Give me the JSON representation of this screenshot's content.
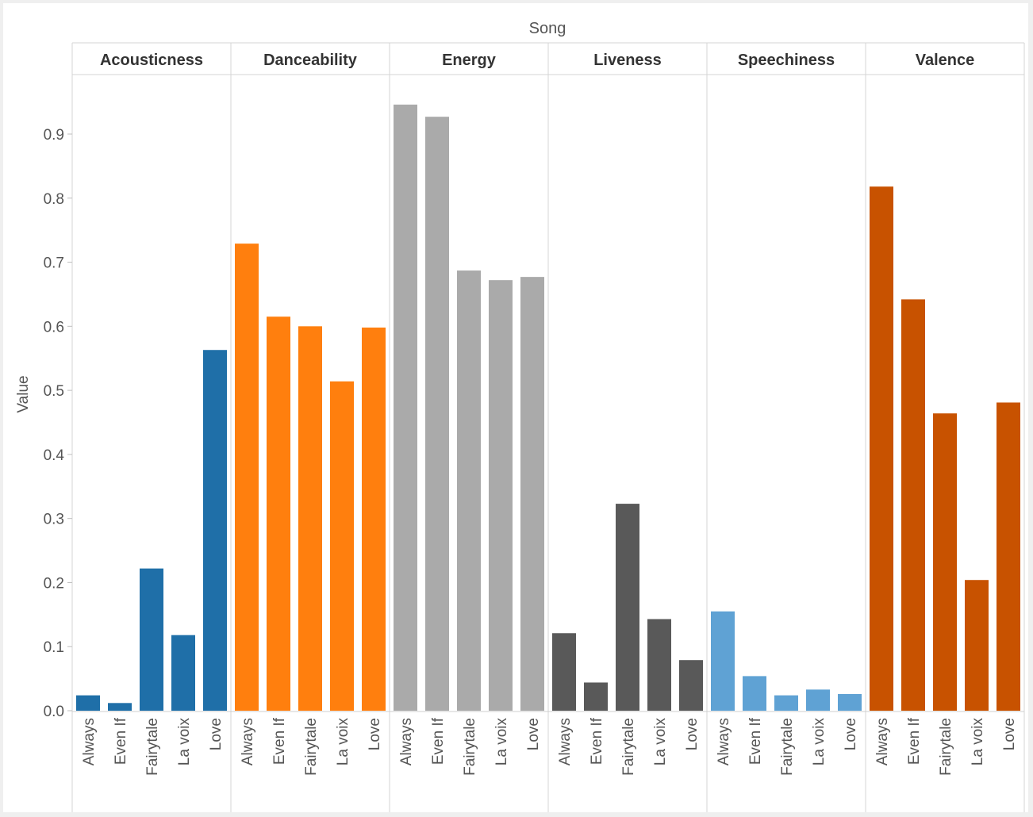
{
  "chart_data": {
    "type": "bar",
    "column_header": "Song",
    "ylabel": "Value",
    "ylim": [
      0,
      0.97
    ],
    "yticks": [
      0.0,
      0.1,
      0.2,
      0.3,
      0.4,
      0.5,
      0.6,
      0.7,
      0.8,
      0.9
    ],
    "ytick_labels": [
      "0.0",
      "0.1",
      "0.2",
      "0.3",
      "0.4",
      "0.5",
      "0.6",
      "0.7",
      "0.8",
      "0.9"
    ],
    "categories": [
      "Always",
      "Even If",
      "Fairytale",
      "La voix",
      "Love"
    ],
    "grid": false,
    "panels": [
      {
        "name": "Acousticness",
        "color": "#1f6fa8",
        "values": [
          0.024,
          0.012,
          0.222,
          0.118,
          0.563
        ]
      },
      {
        "name": "Danceability",
        "color": "#ff7f0e",
        "values": [
          0.729,
          0.615,
          0.6,
          0.514,
          0.598
        ]
      },
      {
        "name": "Energy",
        "color": "#aaaaaa",
        "values": [
          0.946,
          0.927,
          0.687,
          0.672,
          0.677
        ]
      },
      {
        "name": "Liveness",
        "color": "#595959",
        "values": [
          0.121,
          0.044,
          0.323,
          0.143,
          0.079
        ]
      },
      {
        "name": "Speechiness",
        "color": "#5fa2d4",
        "values": [
          0.155,
          0.054,
          0.024,
          0.033,
          0.026
        ]
      },
      {
        "name": "Valence",
        "color": "#c85200",
        "values": [
          0.818,
          0.642,
          0.464,
          0.204,
          0.481
        ]
      }
    ]
  }
}
